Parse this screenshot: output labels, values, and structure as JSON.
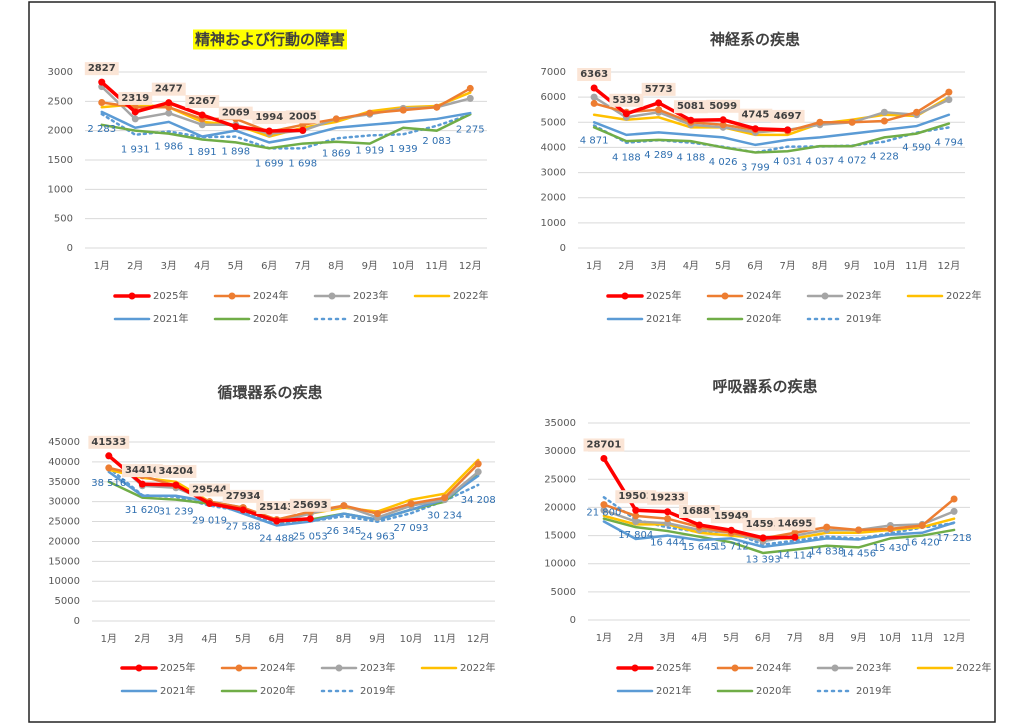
{
  "chart_data": [
    {
      "type": "line",
      "title": "精神および行動の障害",
      "title_background": "#ffff00",
      "categories": [
        "1月",
        "2月",
        "3月",
        "4月",
        "5月",
        "6月",
        "7月",
        "8月",
        "9月",
        "10月",
        "11月",
        "12月"
      ],
      "ylim": [
        0,
        3000
      ],
      "yticks": [
        0,
        500,
        1000,
        1500,
        2000,
        2500,
        3000
      ],
      "grid": true,
      "legend": "bottom",
      "series": [
        {
          "name": "2025年",
          "color": "#ff0000",
          "values": [
            2827,
            2319,
            2477,
            2267,
            2069,
            1994,
            2005,
            null,
            null,
            null,
            null,
            null
          ]
        },
        {
          "name": "2024年",
          "color": "#ed7d31",
          "values": [
            2480,
            2400,
            2400,
            2200,
            2200,
            1980,
            2100,
            2200,
            2300,
            2350,
            2400,
            2720
          ]
        },
        {
          "name": "2023年",
          "color": "#a5a5a5",
          "values": [
            2750,
            2200,
            2300,
            2100,
            2100,
            1950,
            2000,
            2200,
            2280,
            2380,
            2400,
            2550
          ]
        },
        {
          "name": "2022年",
          "color": "#ffc000",
          "values": [
            2400,
            2450,
            2400,
            2150,
            2100,
            1900,
            2050,
            2150,
            2330,
            2400,
            2420,
            2650
          ]
        },
        {
          "name": "2021年",
          "color": "#5b9bd5",
          "values": [
            2320,
            2050,
            2150,
            1900,
            2000,
            1800,
            1900,
            2050,
            2100,
            2150,
            2200,
            2300
          ]
        },
        {
          "name": "2020年",
          "color": "#70ad47",
          "values": [
            2100,
            2000,
            1950,
            1850,
            1800,
            1700,
            1780,
            1810,
            1780,
            2050,
            2000,
            2280
          ]
        },
        {
          "name": "2019年",
          "color": "#5b9bd5",
          "dotted": true,
          "values": [
            2283,
            1931,
            1986,
            1891,
            1898,
            1699,
            1698,
            1869,
            1919,
            1939,
            2083,
            2275
          ],
          "value_labels": [
            "2 283",
            "1 931",
            "1 986",
            "1 891",
            "1 898",
            "1 699",
            "1 698",
            "1 869",
            "1 919",
            "1 939",
            "2 083",
            "2 275"
          ]
        }
      ]
    },
    {
      "type": "line",
      "title": "神経系の疾患",
      "categories": [
        "1月",
        "2月",
        "3月",
        "4月",
        "5月",
        "6月",
        "7月",
        "8月",
        "9月",
        "10月",
        "11月",
        "12月"
      ],
      "ylim": [
        0,
        7000
      ],
      "yticks": [
        0,
        1000,
        2000,
        3000,
        4000,
        5000,
        6000,
        7000
      ],
      "grid": true,
      "legend": "bottom",
      "series": [
        {
          "name": "2025年",
          "color": "#ff0000",
          "values": [
            6363,
            5339,
            5773,
            5081,
            5099,
            4745,
            4697,
            null,
            null,
            null,
            null,
            null
          ]
        },
        {
          "name": "2024年",
          "color": "#ed7d31",
          "values": [
            5750,
            5400,
            5500,
            5000,
            4900,
            4700,
            4650,
            5000,
            5000,
            5050,
            5400,
            6200
          ]
        },
        {
          "name": "2023年",
          "color": "#a5a5a5",
          "values": [
            6000,
            5200,
            5400,
            4900,
            4800,
            4600,
            4700,
            4900,
            5000,
            5400,
            5300,
            5900
          ]
        },
        {
          "name": "2022年",
          "color": "#ffc000",
          "values": [
            5300,
            5100,
            5200,
            4800,
            4800,
            4500,
            4500,
            4950,
            5100,
            5300,
            5250,
            6000
          ]
        },
        {
          "name": "2021年",
          "color": "#5b9bd5",
          "values": [
            5000,
            4500,
            4600,
            4500,
            4400,
            4100,
            4300,
            4400,
            4550,
            4700,
            4850,
            5300
          ]
        },
        {
          "name": "2020年",
          "color": "#70ad47",
          "values": [
            4800,
            4250,
            4300,
            4250,
            4000,
            3800,
            3850,
            4050,
            4050,
            4400,
            4550,
            4950
          ]
        },
        {
          "name": "2019年",
          "color": "#5b9bd5",
          "dotted": true,
          "values": [
            4871,
            4188,
            4289,
            4188,
            4026,
            3799,
            4031,
            4037,
            4072,
            4228,
            4590,
            4794
          ],
          "value_labels": [
            "4 871",
            "4 188",
            "4 289",
            "4 188",
            "4 026",
            "3 799",
            "4 031",
            "4 037",
            "4 072",
            "4 228",
            "4 590",
            "4 794"
          ]
        }
      ]
    },
    {
      "type": "line",
      "title": "循環器系の疾患",
      "categories": [
        "1月",
        "2月",
        "3月",
        "4月",
        "5月",
        "6月",
        "7月",
        "8月",
        "9月",
        "10月",
        "11月",
        "12月"
      ],
      "ylim": [
        0,
        45000
      ],
      "yticks": [
        0,
        5000,
        10000,
        15000,
        20000,
        25000,
        30000,
        35000,
        40000,
        45000
      ],
      "grid": true,
      "legend": "bottom",
      "series": [
        {
          "name": "2025年",
          "color": "#ff0000",
          "values": [
            41533,
            34416,
            34204,
            29544,
            27934,
            25143,
            25693,
            null,
            null,
            null,
            null,
            null
          ]
        },
        {
          "name": "2024年",
          "color": "#ed7d31",
          "values": [
            38500,
            36500,
            34000,
            30000,
            28500,
            25500,
            27500,
            29000,
            27000,
            29500,
            31000,
            39500
          ]
        },
        {
          "name": "2023年",
          "color": "#a5a5a5",
          "values": [
            41500,
            34000,
            33500,
            30000,
            28500,
            25000,
            27000,
            29000,
            26000,
            29000,
            30500,
            37500
          ]
        },
        {
          "name": "2022年",
          "color": "#ffc000",
          "values": [
            38000,
            36000,
            35000,
            30000,
            28000,
            25500,
            27000,
            28500,
            27500,
            30500,
            32000,
            40500
          ]
        },
        {
          "name": "2021年",
          "color": "#5b9bd5",
          "values": [
            37500,
            31500,
            31500,
            30000,
            27000,
            24000,
            25000,
            27000,
            25500,
            28000,
            30500,
            36500
          ]
        },
        {
          "name": "2020年",
          "color": "#70ad47",
          "values": [
            35000,
            31000,
            30500,
            29500,
            28000,
            25000,
            25500,
            27000,
            25500,
            28000,
            30000,
            37000
          ]
        },
        {
          "name": "2019年",
          "color": "#5b9bd5",
          "dotted": true,
          "values": [
            38516,
            31620,
            31239,
            29019,
            27588,
            24488,
            25053,
            26345,
            24963,
            27093,
            30234,
            34208
          ],
          "value_labels": [
            "38 516",
            "31 620",
            "31 239",
            "29 019",
            "27 588",
            "24 488",
            "25 053",
            "26 345",
            "24 963",
            "27 093",
            "30 234",
            "34 208"
          ]
        }
      ]
    },
    {
      "type": "line",
      "title": "呼吸器系の疾患",
      "categories": [
        "1月",
        "2月",
        "3月",
        "4月",
        "5月",
        "6月",
        "7月",
        "8月",
        "9月",
        "10月",
        "11月",
        "12月"
      ],
      "ylim": [
        0,
        35000
      ],
      "yticks": [
        0,
        5000,
        10000,
        15000,
        20000,
        25000,
        30000,
        35000
      ],
      "grid": true,
      "legend": "bottom",
      "series": [
        {
          "name": "2025年",
          "color": "#ff0000",
          "values": [
            28701,
            19502,
            19233,
            16881,
            15949,
            14595,
            14695,
            null,
            null,
            null,
            null,
            null
          ]
        },
        {
          "name": "2024年",
          "color": "#ed7d31",
          "values": [
            20500,
            18500,
            18000,
            16500,
            15500,
            14500,
            15500,
            16500,
            16000,
            16200,
            16800,
            21500
          ]
        },
        {
          "name": "2023年",
          "color": "#a5a5a5",
          "values": [
            19500,
            17500,
            17200,
            16000,
            15500,
            14000,
            15000,
            16000,
            16000,
            16800,
            17000,
            19300
          ]
        },
        {
          "name": "2022年",
          "color": "#ffc000",
          "values": [
            18500,
            17000,
            17000,
            15500,
            15000,
            14500,
            14500,
            15500,
            15500,
            16000,
            16500,
            18000
          ]
        },
        {
          "name": "2021年",
          "color": "#5b9bd5",
          "values": [
            17500,
            14400,
            15000,
            14200,
            14500,
            13000,
            13700,
            14500,
            14300,
            15200,
            15500,
            17300
          ]
        },
        {
          "name": "2020年",
          "color": "#70ad47",
          "values": [
            18000,
            16500,
            15800,
            14800,
            13800,
            11900,
            12500,
            13200,
            12900,
            14500,
            15000,
            16000
          ]
        },
        {
          "name": "2019年",
          "color": "#5b9bd5",
          "dotted": true,
          "values": [
            21800,
            17804,
            16444,
            15645,
            15712,
            13393,
            14114,
            14838,
            14456,
            15430,
            16420,
            17218
          ],
          "value_labels": [
            "21 800",
            "17 804",
            "16 444",
            "15 645",
            "15 712",
            "13 393",
            "14 114",
            "14 838",
            "14 456",
            "15 430",
            "16 420",
            "17 218"
          ]
        }
      ]
    }
  ]
}
